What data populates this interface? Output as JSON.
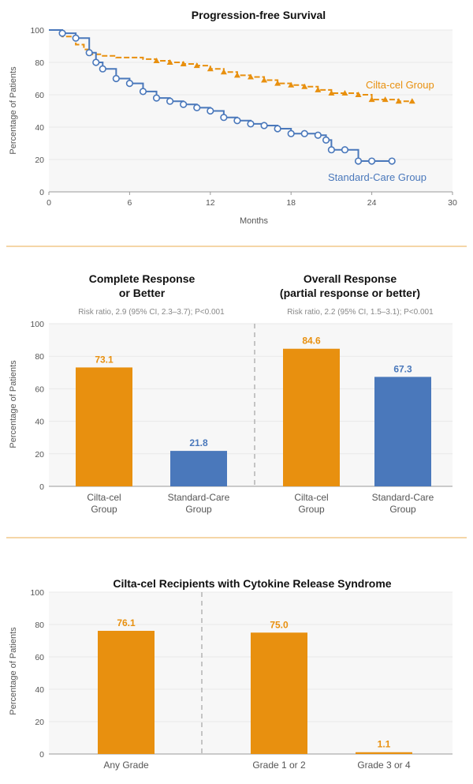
{
  "colors": {
    "orange": "#e8900f",
    "blue": "#4a78bb",
    "grid": "#e9e9e9",
    "separator": "#f2c98a"
  },
  "chart_data": [
    {
      "type": "line",
      "title": "Progression-free Survival",
      "xlabel": "Months",
      "ylabel": "Percentage of Patients",
      "xlim": [
        0,
        30
      ],
      "ylim": [
        0,
        100
      ],
      "xticks": [
        "0",
        "6",
        "12",
        "18",
        "24",
        "30"
      ],
      "yticks": [
        "0",
        "20",
        "40",
        "60",
        "80",
        "100"
      ],
      "series": [
        {
          "name": "Cilta-cel Group",
          "color": "#e8900f",
          "x": [
            0,
            1,
            2,
            2.6,
            3,
            4,
            5,
            6,
            7,
            8,
            9,
            10,
            11,
            12,
            13,
            14,
            15,
            16,
            17,
            18,
            19,
            20,
            21,
            22,
            23,
            24,
            25,
            26,
            27
          ],
          "y": [
            100,
            96,
            91,
            88,
            85,
            84,
            83,
            83,
            82,
            81,
            80,
            79,
            78,
            76,
            74,
            72,
            71,
            69,
            67,
            66,
            65,
            63,
            61,
            61,
            60,
            57,
            57,
            56,
            56
          ]
        },
        {
          "name": "Standard-Care Group",
          "color": "#4a78bb",
          "x": [
            0,
            1,
            2,
            3,
            3.5,
            4,
            5,
            6,
            7,
            8,
            9,
            10,
            11,
            12,
            13,
            14,
            15,
            16,
            17,
            18,
            19,
            20,
            20.6,
            21,
            22,
            23,
            24,
            25.5
          ],
          "y": [
            100,
            98,
            95,
            86,
            80,
            76,
            70,
            67,
            62,
            58,
            56,
            54,
            52,
            50,
            46,
            44,
            42,
            41,
            39,
            36,
            36,
            35,
            32,
            26,
            26,
            19,
            19,
            19
          ]
        }
      ]
    },
    {
      "type": "bar",
      "ylabel": "Percentage of Patients",
      "ylim": [
        0,
        100
      ],
      "yticks": [
        "0",
        "20",
        "40",
        "60",
        "80",
        "100"
      ],
      "panels": [
        {
          "title": [
            "Complete Response",
            "or Better"
          ],
          "subtitle": "Risk ratio, 2.9 (95% CI, 2.3–3.7); P<0.001",
          "categories": [
            [
              "Cilta-cel",
              "Group"
            ],
            [
              "Standard-Care",
              "Group"
            ]
          ],
          "values": [
            73.1,
            21.8
          ],
          "labels": [
            "73.1",
            "21.8"
          ],
          "colors": [
            "#e8900f",
            "#4a78bb"
          ]
        },
        {
          "title": [
            "Overall Response",
            "(partial response or better)"
          ],
          "subtitle": "Risk ratio, 2.2 (95% CI, 1.5–3.1); P<0.001",
          "categories": [
            [
              "Cilta-cel",
              "Group"
            ],
            [
              "Standard-Care",
              "Group"
            ]
          ],
          "values": [
            84.6,
            67.3
          ],
          "labels": [
            "84.6",
            "67.3"
          ],
          "colors": [
            "#e8900f",
            "#4a78bb"
          ]
        }
      ]
    },
    {
      "type": "bar",
      "title": "Cilta-cel Recipients with Cytokine Release Syndrome",
      "ylabel": "Percentage of Patients",
      "ylim": [
        0,
        100
      ],
      "yticks": [
        "0",
        "20",
        "40",
        "60",
        "80",
        "100"
      ],
      "categories": [
        "Any Grade",
        "Grade 1 or 2",
        "Grade 3 or 4"
      ],
      "values": [
        76.1,
        75.0,
        1.1
      ],
      "labels": [
        "76.1",
        "75.0",
        "1.1"
      ],
      "color": "#e8900f"
    }
  ]
}
